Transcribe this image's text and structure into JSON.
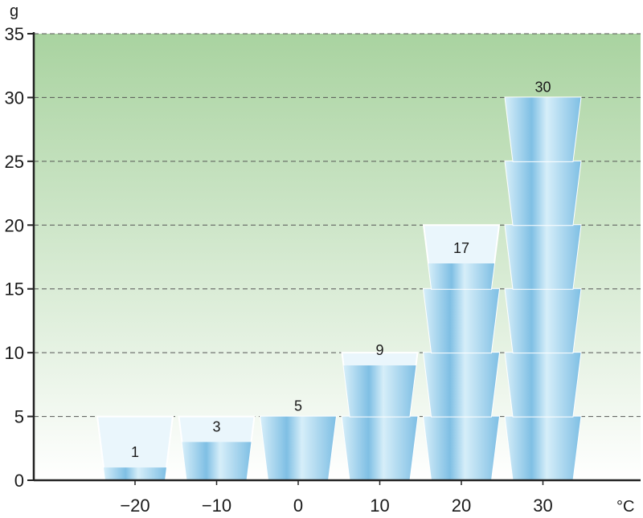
{
  "chart_data": {
    "type": "bar",
    "categories": [
      "−20",
      "−10",
      "0",
      "10",
      "20",
      "30"
    ],
    "values": [
      1,
      3,
      5,
      9,
      17,
      30
    ],
    "cup_capacity": 5,
    "ylabel": "g",
    "xlabel": "°C",
    "ylim": [
      0,
      35
    ],
    "yticks": [
      0,
      5,
      10,
      15,
      20,
      25,
      30,
      35
    ],
    "grid": true
  },
  "colors": {
    "background_top": "#a9d3a0",
    "background_bottom": "#ffffff",
    "cup_empty": "#eaf6fc",
    "cup_water_light": "#d6eef9",
    "cup_water_dark": "#7fbfe4",
    "cup_outline": "#ffffff",
    "axis": "#222222",
    "grid": "#555555"
  }
}
